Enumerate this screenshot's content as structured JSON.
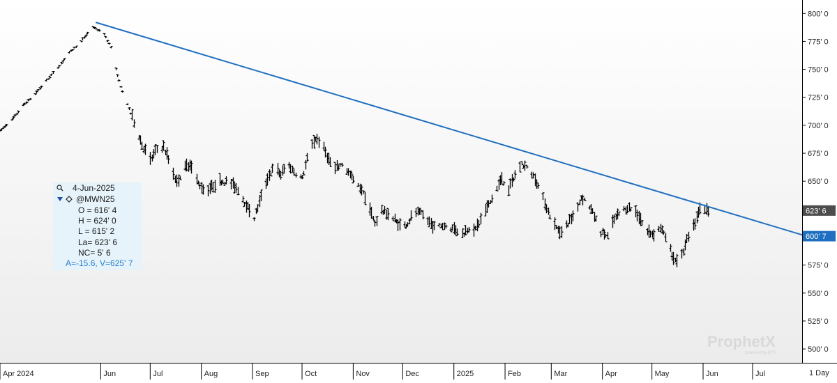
{
  "chart_data": {
    "type": "ohlc-bar",
    "symbol": "@MWN25",
    "interval": "1 Day",
    "ylim": [
      487,
      812
    ],
    "y_ticks": [
      500,
      525,
      550,
      575,
      600,
      625,
      650,
      675,
      700,
      725,
      750,
      775,
      800
    ],
    "y_tick_labels": [
      "500' 0",
      "525' 0",
      "550' 0",
      "575' 0",
      "600' 0",
      "625' 0",
      "650' 0",
      "675' 0",
      "700' 0",
      "725' 0",
      "750' 0",
      "775' 0",
      "800' 0"
    ],
    "x_range": [
      "2024-04-01",
      "2025-07-31"
    ],
    "x_ticks": [
      {
        "date": "2024-04-01",
        "label": "Apr 2024"
      },
      {
        "date": "2024-06-01",
        "label": "Jun"
      },
      {
        "date": "2024-07-01",
        "label": "Jul"
      },
      {
        "date": "2024-08-01",
        "label": "Aug"
      },
      {
        "date": "2024-09-01",
        "label": "Sep"
      },
      {
        "date": "2024-10-01",
        "label": "Oct"
      },
      {
        "date": "2024-11-01",
        "label": "Nov"
      },
      {
        "date": "2024-12-01",
        "label": "Dec"
      },
      {
        "date": "2025-01-01",
        "label": "2025"
      },
      {
        "date": "2025-02-01",
        "label": "Feb"
      },
      {
        "date": "2025-03-01",
        "label": "Mar"
      },
      {
        "date": "2025-04-01",
        "label": "Apr"
      },
      {
        "date": "2025-05-01",
        "label": "May"
      },
      {
        "date": "2025-06-01",
        "label": "Jun"
      },
      {
        "date": "2025-07-01",
        "label": "Jul"
      }
    ],
    "price_path": [
      [
        "2024-04-01",
        695
      ],
      [
        "2024-04-08",
        705
      ],
      [
        "2024-04-15",
        718
      ],
      [
        "2024-04-22",
        728
      ],
      [
        "2024-04-29",
        740
      ],
      [
        "2024-05-06",
        752
      ],
      [
        "2024-05-13",
        765
      ],
      [
        "2024-05-20",
        775
      ],
      [
        "2024-05-27",
        788
      ],
      [
        "2024-06-03",
        782
      ],
      [
        "2024-06-07",
        770
      ],
      [
        "2024-06-10",
        750
      ],
      [
        "2024-06-14",
        730
      ],
      [
        "2024-06-18",
        715
      ],
      [
        "2024-06-22",
        698
      ],
      [
        "2024-06-26",
        682
      ],
      [
        "2024-07-01",
        668
      ],
      [
        "2024-07-05",
        678
      ],
      [
        "2024-07-09",
        680
      ],
      [
        "2024-07-13",
        665
      ],
      [
        "2024-07-17",
        648
      ],
      [
        "2024-07-21",
        660
      ],
      [
        "2024-07-25",
        665
      ],
      [
        "2024-07-29",
        650
      ],
      [
        "2024-08-03",
        640
      ],
      [
        "2024-08-08",
        645
      ],
      [
        "2024-08-13",
        650
      ],
      [
        "2024-08-18",
        648
      ],
      [
        "2024-08-23",
        642
      ],
      [
        "2024-08-28",
        628
      ],
      [
        "2024-09-02",
        617
      ],
      [
        "2024-09-06",
        635
      ],
      [
        "2024-09-10",
        652
      ],
      [
        "2024-09-14",
        662
      ],
      [
        "2024-09-18",
        655
      ],
      [
        "2024-09-22",
        665
      ],
      [
        "2024-09-26",
        658
      ],
      [
        "2024-10-01",
        652
      ],
      [
        "2024-10-05",
        675
      ],
      [
        "2024-10-09",
        688
      ],
      [
        "2024-10-13",
        682
      ],
      [
        "2024-10-17",
        668
      ],
      [
        "2024-10-21",
        660
      ],
      [
        "2024-10-25",
        665
      ],
      [
        "2024-10-29",
        657
      ],
      [
        "2024-11-02",
        648
      ],
      [
        "2024-11-06",
        642
      ],
      [
        "2024-11-10",
        628
      ],
      [
        "2024-11-14",
        612
      ],
      [
        "2024-11-18",
        623
      ],
      [
        "2024-11-22",
        620
      ],
      [
        "2024-11-26",
        615
      ],
      [
        "2024-11-30",
        608
      ],
      [
        "2024-12-04",
        612
      ],
      [
        "2024-12-08",
        622
      ],
      [
        "2024-12-12",
        620
      ],
      [
        "2024-12-16",
        614
      ],
      [
        "2024-12-20",
        608
      ],
      [
        "2024-12-24",
        610
      ],
      [
        "2024-12-28",
        609
      ],
      [
        "2025-01-02",
        606
      ],
      [
        "2025-01-06",
        602
      ],
      [
        "2025-01-10",
        608
      ],
      [
        "2025-01-14",
        606
      ],
      [
        "2025-01-18",
        618
      ],
      [
        "2025-01-22",
        628
      ],
      [
        "2025-01-26",
        640
      ],
      [
        "2025-01-30",
        652
      ],
      [
        "2025-02-03",
        642
      ],
      [
        "2025-02-07",
        655
      ],
      [
        "2025-02-11",
        665
      ],
      [
        "2025-02-15",
        660
      ],
      [
        "2025-02-19",
        652
      ],
      [
        "2025-02-23",
        638
      ],
      [
        "2025-02-27",
        622
      ],
      [
        "2025-03-03",
        610
      ],
      [
        "2025-03-07",
        603
      ],
      [
        "2025-03-11",
        612
      ],
      [
        "2025-03-15",
        620
      ],
      [
        "2025-03-19",
        635
      ],
      [
        "2025-03-23",
        630
      ],
      [
        "2025-03-27",
        618
      ],
      [
        "2025-03-31",
        604
      ],
      [
        "2025-04-04",
        600
      ],
      [
        "2025-04-08",
        615
      ],
      [
        "2025-04-12",
        622
      ],
      [
        "2025-04-16",
        626
      ],
      [
        "2025-04-20",
        624
      ],
      [
        "2025-04-24",
        615
      ],
      [
        "2025-04-28",
        604
      ],
      [
        "2025-05-02",
        602
      ],
      [
        "2025-05-06",
        608
      ],
      [
        "2025-05-10",
        596
      ],
      [
        "2025-05-14",
        580
      ],
      [
        "2025-05-18",
        578
      ],
      [
        "2025-05-22",
        596
      ],
      [
        "2025-05-26",
        608
      ],
      [
        "2025-05-30",
        624
      ],
      [
        "2025-06-04",
        623.75
      ]
    ],
    "trendline": {
      "start": {
        "date": "2024-05-29",
        "value": 792
      },
      "end": {
        "date": "2025-07-31",
        "value": 602
      }
    },
    "last_price_label": "623' 6",
    "trendline_price_label": "600' 7",
    "last_price_value": 623.75,
    "trendline_price_value": 600.875,
    "colors": {
      "bars": "#000000",
      "trendline": "#1f6fc0",
      "last_price_bg": "#4d4d4d",
      "trendline_bg": "#1f6fc0",
      "info_bg": "#e6f3fa"
    }
  },
  "info_box": {
    "date": "4-Jun-2025",
    "symbol": "@MWN25",
    "open": "O = 616' 4",
    "high": "H = 624' 0",
    "low": "L = 615' 2",
    "last": "La= 623' 6",
    "net_change": "NC= 5' 6",
    "cursor": "A=-15.6, V=625' 7",
    "icons": [
      "magnifier-icon",
      "triangle-down-icon",
      "diamond-icon"
    ]
  },
  "watermark": {
    "name": "ProphetX",
    "tagline": "powered by DTN"
  },
  "interval_label": "1 Day"
}
